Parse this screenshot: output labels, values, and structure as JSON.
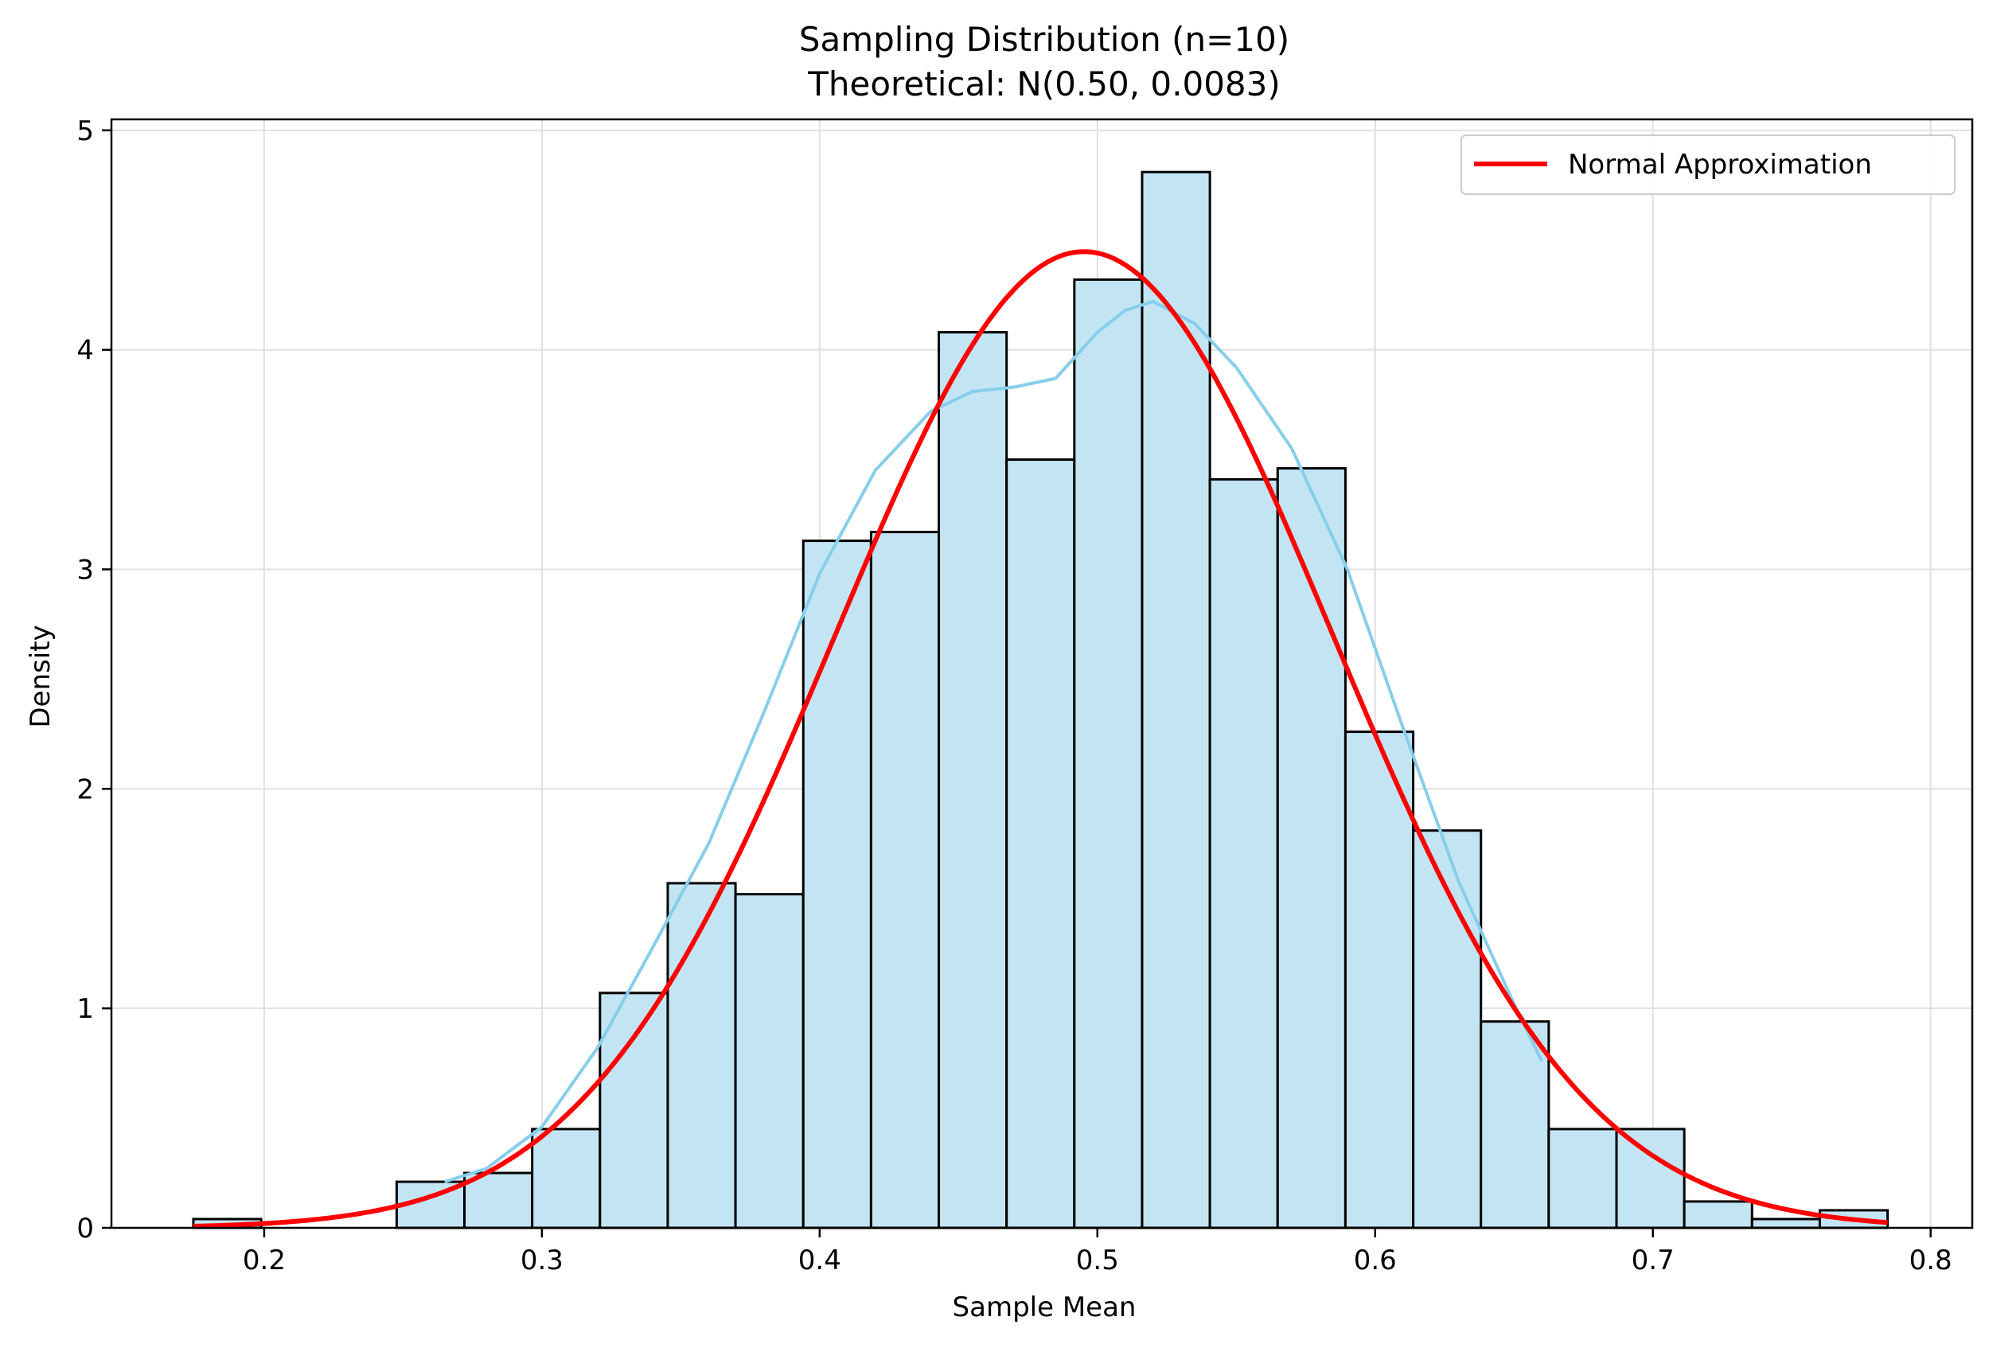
{
  "chart_data": {
    "type": "bar",
    "title": "Sampling Distribution (n=10)",
    "subtitle": "Theoretical: N(0.50, 0.0083)",
    "xlabel": "Sample Mean",
    "ylabel": "Density",
    "xlim": [
      0.145,
      0.815
    ],
    "ylim": [
      0,
      5.05
    ],
    "xticks": [
      0.2,
      0.3,
      0.4,
      0.5,
      0.6,
      0.7,
      0.8
    ],
    "xtick_labels": [
      "0.2",
      "0.3",
      "0.4",
      "0.5",
      "0.6",
      "0.7",
      "0.8"
    ],
    "yticks": [
      0,
      1,
      2,
      3,
      4,
      5
    ],
    "ytick_labels": [
      "0",
      "1",
      "2",
      "3",
      "4",
      "5"
    ],
    "grid": true,
    "legend_position": "top-right",
    "histogram": {
      "bin_start": 0.1745,
      "bin_width": 0.0244,
      "density": [
        0.04,
        0.0,
        0.0,
        0.21,
        0.25,
        0.45,
        1.07,
        1.57,
        1.52,
        3.13,
        3.17,
        4.08,
        3.5,
        4.32,
        4.81,
        3.41,
        3.46,
        2.26,
        1.81,
        0.94,
        0.45,
        0.45,
        0.12,
        0.04,
        0.08
      ],
      "fill_color": "#c3e5f3",
      "edge_color": "#000000"
    },
    "series": [
      {
        "name": "Normal Approximation",
        "kind": "normal_pdf",
        "mean": 0.4952,
        "std": 0.0897,
        "x_range": [
          0.1745,
          0.7845
        ],
        "color": "#ff0000"
      },
      {
        "kind": "kde",
        "color": "#87ceeb",
        "x": [
          0.265,
          0.28,
          0.3,
          0.32,
          0.34,
          0.36,
          0.38,
          0.4,
          0.42,
          0.44,
          0.455,
          0.47,
          0.485,
          0.5,
          0.51,
          0.52,
          0.535,
          0.55,
          0.57,
          0.59,
          0.61,
          0.63,
          0.65,
          0.66
        ],
        "y": [
          0.21,
          0.27,
          0.46,
          0.82,
          1.28,
          1.75,
          2.35,
          2.98,
          3.45,
          3.72,
          3.81,
          3.83,
          3.87,
          4.08,
          4.18,
          4.22,
          4.12,
          3.92,
          3.55,
          3.0,
          2.28,
          1.58,
          1.02,
          0.76
        ]
      }
    ]
  }
}
